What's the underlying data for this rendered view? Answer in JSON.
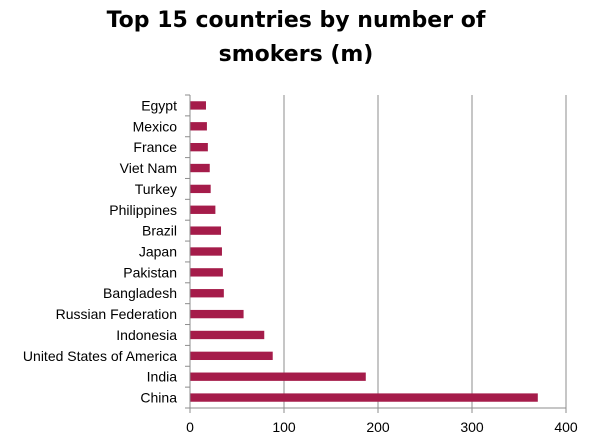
{
  "chart_data": {
    "type": "bar",
    "orientation": "horizontal",
    "title_lines": [
      "Top 15 countries by number of",
      "smokers (m)"
    ],
    "categories": [
      "China",
      "India",
      "United States of America",
      "Indonesia",
      "Russian Federation",
      "Bangladesh",
      "Pakistan",
      "Japan",
      "Brazil",
      "Philippines",
      "Turkey",
      "Viet Nam",
      "France",
      "Mexico",
      "Egypt"
    ],
    "values": [
      370,
      187,
      88,
      79,
      57,
      36,
      35,
      34,
      33,
      27,
      22,
      21,
      19,
      18,
      17
    ],
    "xlim": [
      0,
      400
    ],
    "xticks": [
      0,
      100,
      200,
      300,
      400
    ],
    "grid": true,
    "bar_color": "#A51C4A",
    "grid_color": "#8c8c8c",
    "legend": false
  }
}
